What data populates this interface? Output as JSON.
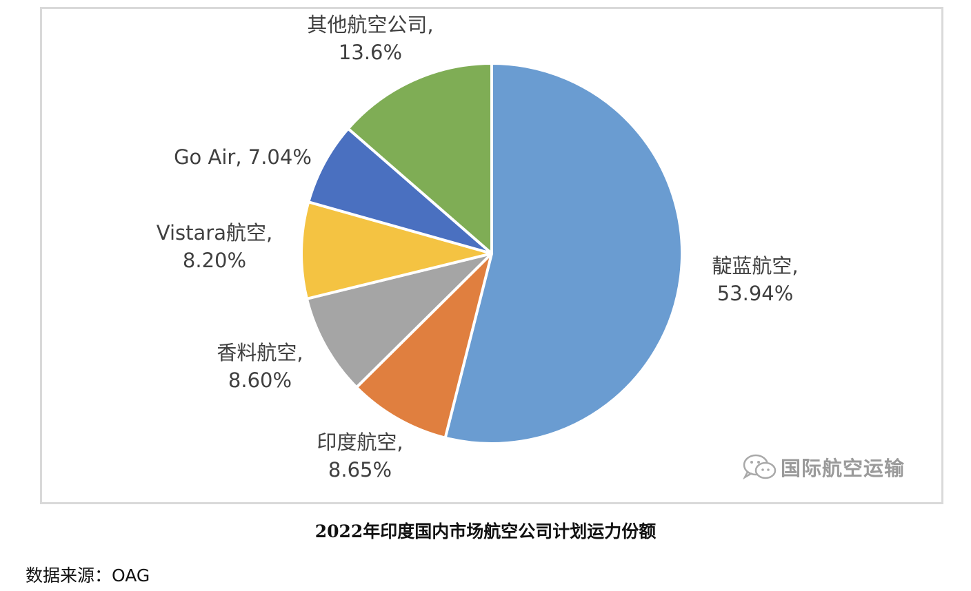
{
  "chart_data": {
    "type": "pie",
    "title": "2022年印度国内市场航空公司计划运力份额",
    "slices": [
      {
        "label": "靛蓝航空,",
        "value_label": "53.94%",
        "value": 53.94,
        "color": "#6a9cd1"
      },
      {
        "label": "印度航空,",
        "value_label": "8.65%",
        "value": 8.65,
        "color": "#e07f3f"
      },
      {
        "label": "香料航空,",
        "value_label": "8.60%",
        "value": 8.6,
        "color": "#a5a5a5"
      },
      {
        "label": "Vistara航空,",
        "value_label": "8.20%",
        "value": 8.2,
        "color": "#f4c342"
      },
      {
        "label": "Go Air, 7.04%",
        "value_label": "",
        "value": 7.04,
        "color": "#4a70c0"
      },
      {
        "label": "其他航空公司,",
        "value_label": "13.6%",
        "value": 13.6,
        "color": "#7fad55"
      }
    ],
    "legend": "none"
  },
  "watermark": {
    "text": "国际航空运输",
    "icon": "wechat-icon"
  },
  "source": "数据来源：OAG"
}
